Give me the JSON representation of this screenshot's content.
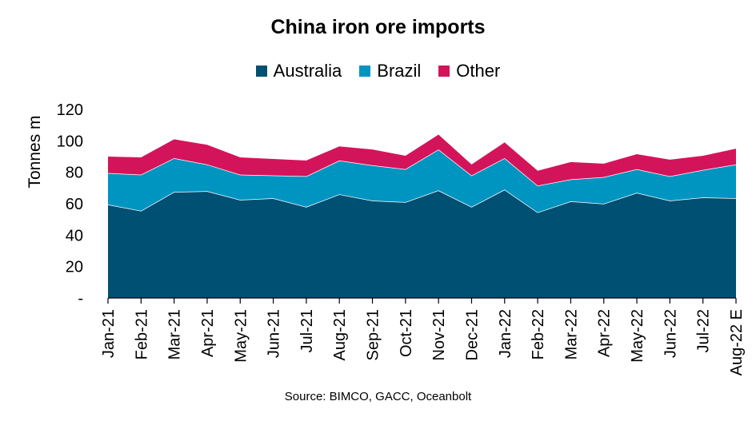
{
  "chart_data": {
    "type": "area",
    "stacked": true,
    "title": "China iron ore imports",
    "ylabel": "Tonnes m",
    "xlabel": "",
    "source": "Source: BIMCO, GACC, Oceanbolt",
    "ylim": [
      0,
      120
    ],
    "yticks": [
      0,
      20,
      40,
      60,
      80,
      100,
      120
    ],
    "ytick_labels": [
      "-",
      "20",
      "40",
      "60",
      "80",
      "100",
      "120"
    ],
    "grid": false,
    "legend_position": "top",
    "categories": [
      "Jan-21",
      "Feb-21",
      "Mar-21",
      "Apr-21",
      "May-21",
      "Jun-21",
      "Jul-21",
      "Aug-21",
      "Sep-21",
      "Oct-21",
      "Nov-21",
      "Dec-21",
      "Jan-22",
      "Feb-22",
      "Mar-22",
      "Apr-22",
      "May-22",
      "Jun-22",
      "Jul-22",
      "Aug-22 E"
    ],
    "series": [
      {
        "name": "Australia",
        "color": "#005073",
        "values": [
          59.5,
          55.5,
          67.5,
          68,
          62.5,
          63.5,
          58,
          66,
          62,
          61,
          68.5,
          58,
          69,
          54.5,
          61.5,
          60,
          67,
          62,
          64,
          63.5
        ]
      },
      {
        "name": "Brazil",
        "color": "#0094c0",
        "values": [
          20,
          23,
          21.5,
          17,
          16,
          14.5,
          19.5,
          21.5,
          22.5,
          21,
          26,
          20,
          20,
          17,
          14,
          17,
          15,
          15.5,
          17.5,
          21.5
        ]
      },
      {
        "name": "Other",
        "color": "#d4145a",
        "values": [
          10.5,
          11,
          12,
          12.5,
          11,
          10.5,
          10,
          9,
          10,
          8.5,
          9.5,
          7,
          10,
          9.5,
          11,
          8.5,
          9.5,
          10.5,
          9,
          10
        ]
      }
    ]
  }
}
